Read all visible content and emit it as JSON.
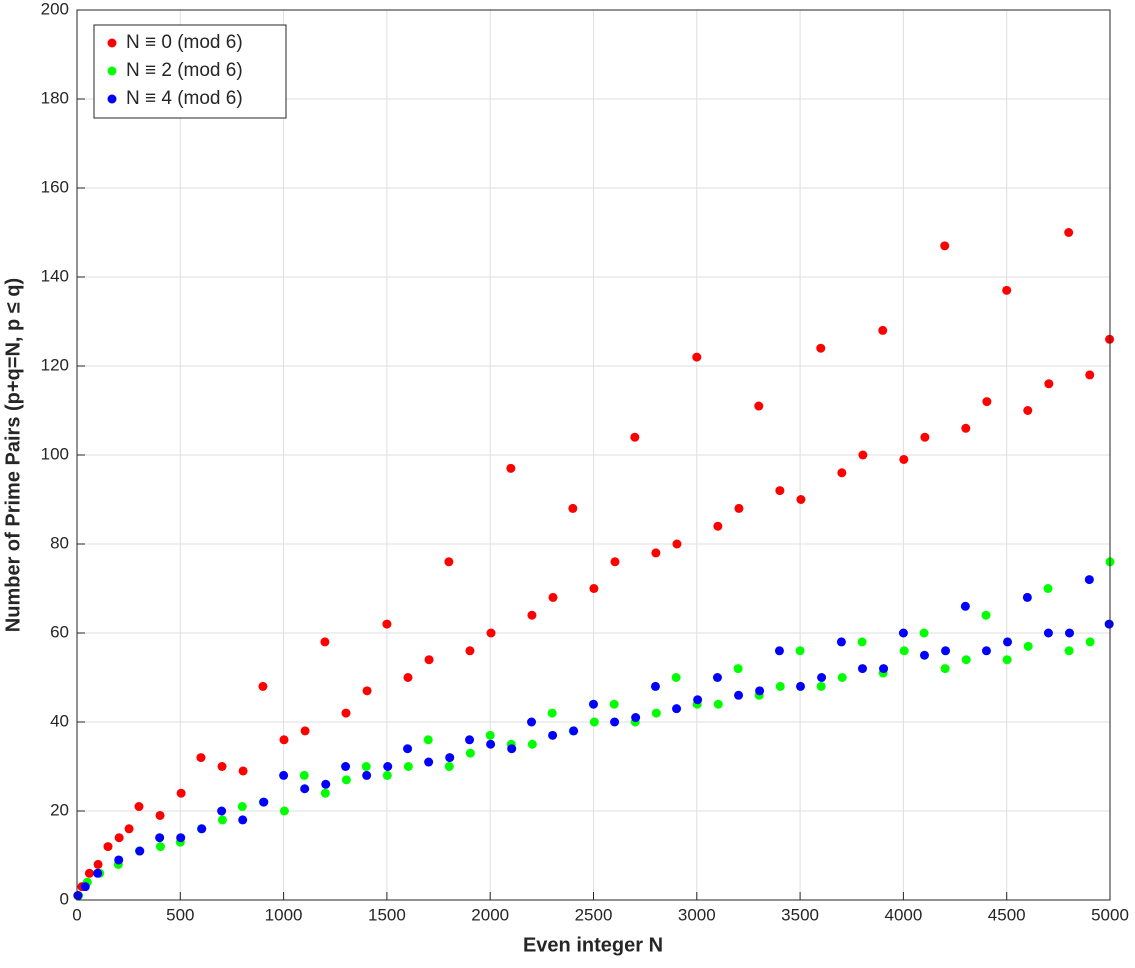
{
  "chart_data": {
    "type": "scatter",
    "xlabel": "Even integer N",
    "ylabel": "Number of Prime Pairs (p+q=N, p ≤ q)",
    "xlim": [
      0,
      5000
    ],
    "xticks": [
      0,
      500,
      1000,
      1500,
      2000,
      2500,
      3000,
      3500,
      4000,
      4500,
      5000
    ],
    "ylim": [
      0,
      200
    ],
    "yticks": [
      0,
      20,
      40,
      60,
      80,
      100,
      120,
      140,
      160,
      180,
      200
    ],
    "grid": true,
    "legend": "upper left",
    "series": [
      {
        "name": "N ≡ 0 (mod 6)",
        "color": "#ff0000",
        "x": [
          24,
          60,
          102,
          150,
          204,
          252,
          300,
          402,
          504,
          600,
          702,
          804,
          900,
          1002,
          1104,
          1200,
          1302,
          1404,
          1500,
          1602,
          1704,
          1800,
          1902,
          2004,
          2100,
          2202,
          2304,
          2400,
          2502,
          2604,
          2700,
          2802,
          2904,
          3000,
          3102,
          3204,
          3300,
          3402,
          3504,
          3600,
          3702,
          3804,
          3900,
          4002,
          4104,
          4200,
          4302,
          4404,
          4500,
          4602,
          4704,
          4800,
          4902,
          4998
        ],
        "values": [
          3,
          6,
          8,
          12,
          14,
          16,
          21,
          19,
          24,
          32,
          30,
          29,
          48,
          36,
          38,
          58,
          42,
          47,
          62,
          50,
          54,
          76,
          56,
          60,
          97,
          64,
          68,
          88,
          70,
          76,
          104,
          78,
          80,
          122,
          84,
          88,
          111,
          92,
          90,
          124,
          96,
          100,
          128,
          99,
          104,
          147,
          106,
          112,
          137,
          110,
          116,
          150,
          118,
          126
        ]
      },
      {
        "name": "N ≡ 2 (mod 6)",
        "color": "#00ff00",
        "x": [
          8,
          50,
          110,
          200,
          302,
          404,
          500,
          602,
          704,
          800,
          902,
          1004,
          1100,
          1202,
          1304,
          1400,
          1502,
          1604,
          1700,
          1802,
          1904,
          2000,
          2102,
          2204,
          2300,
          2402,
          2504,
          2600,
          2702,
          2804,
          2900,
          3002,
          3104,
          3200,
          3302,
          3404,
          3500,
          3602,
          3704,
          3800,
          3902,
          4004,
          4100,
          4202,
          4304,
          4400,
          4502,
          4604,
          4700,
          4802,
          4904,
          5000
        ],
        "values": [
          1,
          4,
          6,
          8,
          11,
          12,
          13,
          16,
          18,
          21,
          22,
          20,
          28,
          24,
          27,
          30,
          28,
          30,
          36,
          30,
          33,
          37,
          35,
          35,
          42,
          38,
          40,
          44,
          40,
          42,
          50,
          44,
          44,
          52,
          46,
          48,
          56,
          48,
          50,
          58,
          51,
          56,
          60,
          52,
          54,
          64,
          54,
          57,
          70,
          56,
          58,
          76
        ]
      },
      {
        "name": "N ≡ 4 (mod 6)",
        "color": "#0000ff",
        "x": [
          4,
          40,
          100,
          202,
          304,
          400,
          502,
          604,
          700,
          802,
          904,
          1000,
          1102,
          1204,
          1300,
          1402,
          1504,
          1600,
          1702,
          1804,
          1900,
          2002,
          2104,
          2200,
          2302,
          2404,
          2500,
          2602,
          2704,
          2800,
          2902,
          3004,
          3100,
          3202,
          3304,
          3400,
          3502,
          3604,
          3700,
          3802,
          3904,
          4000,
          4102,
          4204,
          4300,
          4402,
          4504,
          4600,
          4702,
          4804,
          4900,
          4996
        ],
        "values": [
          1,
          3,
          6,
          9,
          11,
          14,
          14,
          16,
          20,
          18,
          22,
          28,
          25,
          26,
          30,
          28,
          30,
          34,
          31,
          32,
          36,
          35,
          34,
          40,
          37,
          38,
          44,
          40,
          41,
          48,
          43,
          45,
          50,
          46,
          47,
          56,
          48,
          50,
          58,
          52,
          52,
          60,
          55,
          56,
          66,
          56,
          58,
          68,
          60,
          60,
          72,
          62
        ]
      }
    ]
  }
}
